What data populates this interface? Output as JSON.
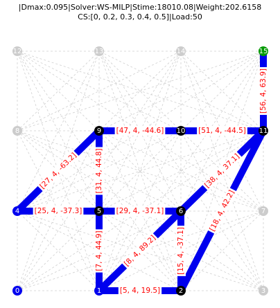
{
  "header": {
    "line1": "|Dmax:0.095|Solver:WS-MILP|Stime:18010.08|Weight:202.6158",
    "line2": "CS:[0, 0.2, 0.3, 0.4, 0.5]|Load:50"
  },
  "colors": {
    "grid": "#cfcfcf",
    "member": "#0000ee",
    "label_text": "#ff0000",
    "label_bg": "#ffffff",
    "node_default": "#cccccc",
    "node_support": "#0000ee",
    "node_joint": "#000000",
    "node_load": "#009900"
  },
  "nodes": [
    {
      "id": "0",
      "col": 0,
      "row": 0,
      "kind": "support"
    },
    {
      "id": "1",
      "col": 1,
      "row": 0,
      "kind": "support"
    },
    {
      "id": "2",
      "col": 2,
      "row": 0,
      "kind": "joint"
    },
    {
      "id": "3",
      "col": 3,
      "row": 0,
      "kind": "default"
    },
    {
      "id": "4",
      "col": 0,
      "row": 1,
      "kind": "support"
    },
    {
      "id": "5",
      "col": 1,
      "row": 1,
      "kind": "joint"
    },
    {
      "id": "6",
      "col": 2,
      "row": 1,
      "kind": "joint"
    },
    {
      "id": "7",
      "col": 3,
      "row": 1,
      "kind": "default"
    },
    {
      "id": "8",
      "col": 0,
      "row": 2,
      "kind": "default"
    },
    {
      "id": "9",
      "col": 1,
      "row": 2,
      "kind": "joint"
    },
    {
      "id": "10",
      "col": 2,
      "row": 2,
      "kind": "joint"
    },
    {
      "id": "11",
      "col": 3,
      "row": 2,
      "kind": "joint"
    },
    {
      "id": "12",
      "col": 0,
      "row": 3,
      "kind": "default"
    },
    {
      "id": "13",
      "col": 1,
      "row": 3,
      "kind": "default"
    },
    {
      "id": "14",
      "col": 2,
      "row": 3,
      "kind": "default"
    },
    {
      "id": "15",
      "col": 3,
      "row": 3,
      "kind": "load"
    }
  ],
  "members": [
    {
      "from": "1",
      "to": "2",
      "label": "[5, 4, 19.5]"
    },
    {
      "from": "1",
      "to": "5",
      "label": "[7, 4, 44.9]"
    },
    {
      "from": "1",
      "to": "6",
      "label": "[8, 4, 89.2]"
    },
    {
      "from": "2",
      "to": "6",
      "label": "[15, 4, -37.1]"
    },
    {
      "from": "2",
      "to": "11",
      "label": "[18, 4, 42.2]"
    },
    {
      "from": "4",
      "to": "5",
      "label": "[25, 4, -37.3]"
    },
    {
      "from": "4",
      "to": "9",
      "label": "[27, 4, -63.2]"
    },
    {
      "from": "5",
      "to": "6",
      "label": "[29, 4, -37.1]"
    },
    {
      "from": "5",
      "to": "9",
      "label": "[31, 4, 44.8]"
    },
    {
      "from": "6",
      "to": "11",
      "label": "[38, 4, 37.1]"
    },
    {
      "from": "9",
      "to": "10",
      "label": "[47, 4, -44.6]"
    },
    {
      "from": "10",
      "to": "11",
      "label": "[51, 4, -44.5]"
    },
    {
      "from": "11",
      "to": "15",
      "label": "[56, 4, 63.9]"
    }
  ]
}
